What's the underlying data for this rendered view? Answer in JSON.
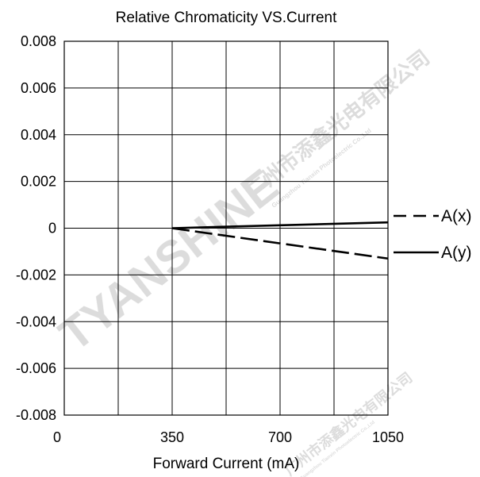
{
  "chart_data": {
    "type": "line",
    "title": "Relative Chromaticity VS.Current",
    "xlabel": "Forward Current (mA)",
    "ylabel": "",
    "xlim": [
      0,
      1050
    ],
    "ylim": [
      -0.008,
      0.008
    ],
    "x_ticks": [
      0,
      350,
      700,
      1050
    ],
    "x_tick_labels": [
      "0",
      "350",
      "700",
      "1050"
    ],
    "y_ticks": [
      0.008,
      0.006,
      0.004,
      0.002,
      0,
      -0.002,
      -0.004,
      -0.006,
      -0.008
    ],
    "y_tick_labels": [
      "0.008",
      "0.006",
      "0.004",
      "0.002",
      "0",
      "-0.002",
      "-0.004",
      "-0.006",
      "-0.008"
    ],
    "grid": true,
    "legend_position": "right",
    "series": [
      {
        "name": "A(x)",
        "style": "dashed",
        "x": [
          350,
          1050
        ],
        "y": [
          0,
          -0.0013
        ]
      },
      {
        "name": "A(y)",
        "style": "solid",
        "x": [
          350,
          1050
        ],
        "y": [
          0,
          0.00025
        ]
      }
    ]
  },
  "watermark": {
    "brand": "TYANSHINE",
    "company_cn": "广州市添鑫光电有限公司",
    "company_en": "Guangzhou Tianxin Photoelectric Co.,Ltd"
  },
  "colors": {
    "line": "#000000",
    "grid": "#000000",
    "watermark": "#d9d9d9"
  }
}
